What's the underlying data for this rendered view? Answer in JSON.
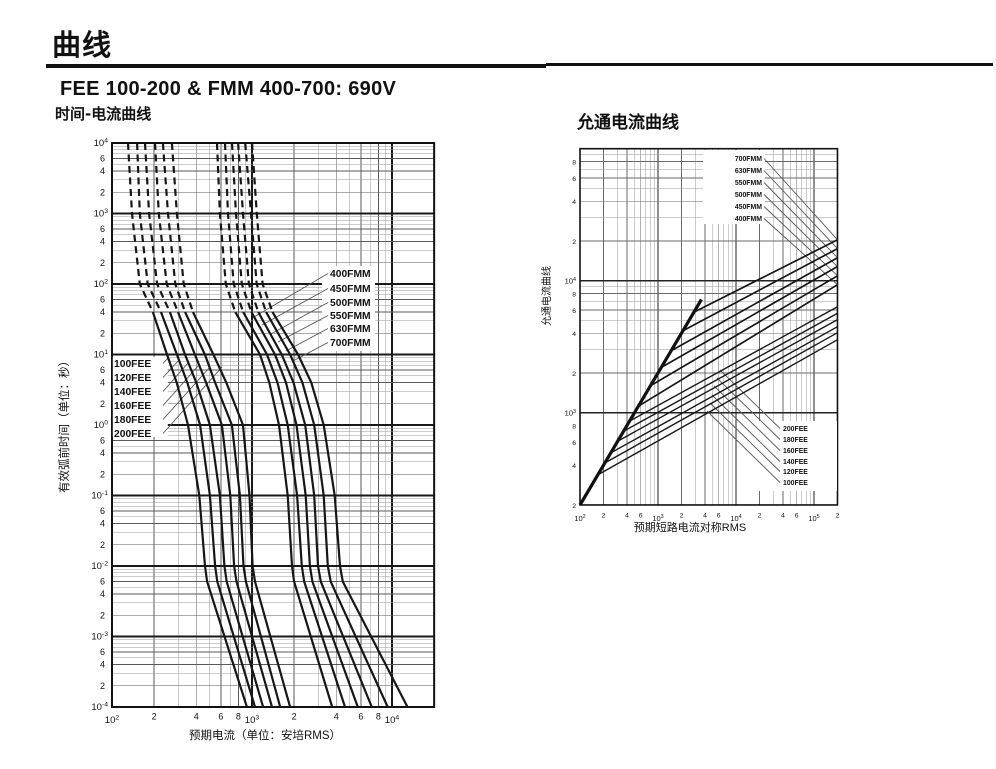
{
  "page": {
    "title": "曲线",
    "section_heading": "FEE 100-200 & FMM 400-700: 690V"
  },
  "chart_data": [
    {
      "id": "time-current",
      "type": "line",
      "title": "时间-电流曲线",
      "xlabel": "预期电流（单位：安培RMS）",
      "ylabel": "有效弧前时间（单位：秒）",
      "xscale": "log",
      "yscale": "log",
      "xlim": [
        100,
        20000
      ],
      "ylim": [
        0.0001,
        10000
      ],
      "grid": "on",
      "x_axis": {
        "decade_exps": [
          2,
          3,
          4
        ],
        "labeled_minors": [
          2,
          4,
          6,
          8
        ],
        "minor_label_decades": [
          2,
          3
        ]
      },
      "y_axis": {
        "decade_exps": [
          4,
          3,
          2,
          1,
          0,
          -1,
          -2,
          -3,
          -4
        ],
        "labeled_minors": [
          6,
          4,
          2
        ],
        "minor_label_decades": [
          3,
          2,
          1,
          0,
          -1,
          -2,
          -3,
          -4
        ]
      },
      "x_tick_labels": [
        "10^2",
        "2",
        "4",
        "6",
        "8",
        "10^3",
        "2",
        "4",
        "6",
        "8",
        "10^4"
      ],
      "y_tick_labels": [
        "10^4",
        "6",
        "4",
        "2",
        "10^3",
        "6",
        "4",
        "2",
        "10^2",
        "6",
        "4",
        "2",
        "10^1",
        "6",
        "4",
        "2",
        "10^0",
        "6",
        "4",
        "2",
        "10^-1",
        "6",
        "4",
        "2",
        "10^-2",
        "6",
        "4",
        "2",
        "10^-3",
        "6",
        "4",
        "2",
        "10^-4"
      ],
      "dash_above_seconds": 40,
      "times_s": [
        10000,
        1000,
        100,
        40,
        10,
        4,
        1,
        0.1,
        0.01,
        0.006,
        0.0001
      ],
      "series": [
        {
          "name": "100FEE",
          "points": [
            [
              130,
              10000
            ],
            [
              139,
              1000
            ],
            [
              158,
              100
            ],
            [
              196,
              40
            ],
            [
              247,
              10
            ],
            [
              290,
              4
            ],
            [
              349,
              1
            ],
            [
              420,
              0.1
            ],
            [
              462,
              0.01
            ],
            [
              478,
              0.006
            ],
            [
              920,
              0.0001
            ]
          ]
        },
        {
          "name": "120FEE",
          "points": [
            [
              151,
              10000
            ],
            [
              158,
              1000
            ],
            [
              180,
              100
            ],
            [
              224,
              40
            ],
            [
              291,
              10
            ],
            [
              345,
              4
            ],
            [
              426,
              1
            ],
            [
              500,
              0.1
            ],
            [
              545,
              0.01
            ],
            [
              565,
              0.006
            ],
            [
              1050,
              0.0001
            ]
          ]
        },
        {
          "name": "140FEE",
          "points": [
            [
              172,
              10000
            ],
            [
              184,
              1000
            ],
            [
              210,
              100
            ],
            [
              259,
              40
            ],
            [
              332,
              10
            ],
            [
              400,
              4
            ],
            [
              500,
              1
            ],
            [
              590,
              0.1
            ],
            [
              635,
              0.01
            ],
            [
              660,
              0.006
            ],
            [
              1200,
              0.0001
            ]
          ]
        },
        {
          "name": "160FEE",
          "points": [
            [
              203,
              10000
            ],
            [
              216,
              1000
            ],
            [
              246,
              100
            ],
            [
              296,
              40
            ],
            [
              391,
              10
            ],
            [
              470,
              4
            ],
            [
              610,
              1
            ],
            [
              700,
              0.1
            ],
            [
              745,
              0.01
            ],
            [
              775,
              0.006
            ],
            [
              1390,
              0.0001
            ]
          ]
        },
        {
          "name": "180FEE",
          "points": [
            [
              231,
              10000
            ],
            [
              251,
              1000
            ],
            [
              283,
              100
            ],
            [
              333,
              40
            ],
            [
              461,
              10
            ],
            [
              545,
              4
            ],
            [
              718,
              1
            ],
            [
              820,
              0.1
            ],
            [
              870,
              0.01
            ],
            [
              905,
              0.006
            ],
            [
              1590,
              0.0001
            ]
          ]
        },
        {
          "name": "200FEE",
          "points": [
            [
              268,
              10000
            ],
            [
              291,
              1000
            ],
            [
              325,
              100
            ],
            [
              379,
              40
            ],
            [
              530,
              10
            ],
            [
              655,
              4
            ],
            [
              862,
              1
            ],
            [
              960,
              0.1
            ],
            [
              1010,
              0.01
            ],
            [
              1050,
              0.006
            ],
            [
              1870,
              0.0001
            ]
          ]
        },
        {
          "name": "400FMM",
          "points": [
            [
              562,
              10000
            ],
            [
              590,
              1000
            ],
            [
              650,
              100
            ],
            [
              760,
              40
            ],
            [
              1140,
              10
            ],
            [
              1330,
              4
            ],
            [
              1560,
              1
            ],
            [
              1800,
              0.1
            ],
            [
              1930,
              0.01
            ],
            [
              2000,
              0.006
            ],
            [
              3740,
              0.0001
            ]
          ]
        },
        {
          "name": "450FMM",
          "points": [
            [
              641,
              10000
            ],
            [
              674,
              1000
            ],
            [
              740,
              100
            ],
            [
              865,
              40
            ],
            [
              1280,
              10
            ],
            [
              1520,
              4
            ],
            [
              1800,
              1
            ],
            [
              2100,
              0.1
            ],
            [
              2270,
              0.01
            ],
            [
              2360,
              0.006
            ],
            [
              4620,
              0.0001
            ]
          ]
        },
        {
          "name": "500FMM",
          "points": [
            [
              720,
              10000
            ],
            [
              769,
              1000
            ],
            [
              845,
              100
            ],
            [
              990,
              40
            ],
            [
              1460,
              10
            ],
            [
              1750,
              4
            ],
            [
              2080,
              1
            ],
            [
              2420,
              0.1
            ],
            [
              2590,
              0.01
            ],
            [
              2700,
              0.006
            ],
            [
              5700,
              0.0001
            ]
          ]
        },
        {
          "name": "550FMM",
          "points": [
            [
              795,
              10000
            ],
            [
              863,
              1000
            ],
            [
              950,
              100
            ],
            [
              1110,
              40
            ],
            [
              1630,
              10
            ],
            [
              1980,
              4
            ],
            [
              2400,
              1
            ],
            [
              2780,
              0.1
            ],
            [
              2960,
              0.01
            ],
            [
              3100,
              0.006
            ],
            [
              7170,
              0.0001
            ]
          ]
        },
        {
          "name": "630FMM",
          "points": [
            [
              894,
              10000
            ],
            [
              983,
              1000
            ],
            [
              1080,
              100
            ],
            [
              1260,
              40
            ],
            [
              1870,
              10
            ],
            [
              2290,
              4
            ],
            [
              2780,
              1
            ],
            [
              3250,
              0.1
            ],
            [
              3480,
              0.01
            ],
            [
              3650,
              0.006
            ],
            [
              9320,
              0.0001
            ]
          ]
        },
        {
          "name": "700FMM",
          "points": [
            [
              1000,
              10000
            ],
            [
              1082,
              1000
            ],
            [
              1190,
              100
            ],
            [
              1400,
              40
            ],
            [
              2130,
              10
            ],
            [
              2650,
              4
            ],
            [
              3250,
              1
            ],
            [
              3900,
              0.1
            ],
            [
              4250,
              0.01
            ],
            [
              4450,
              0.006
            ],
            [
              12900,
              0.0001
            ]
          ]
        }
      ],
      "legends": [
        {
          "group": "FMM",
          "labels": [
            "400FMM",
            "450FMM",
            "500FMM",
            "550FMM",
            "630FMM",
            "700FMM"
          ]
        },
        {
          "group": "FEE",
          "labels": [
            "100FEE",
            "120FEE",
            "140FEE",
            "160FEE",
            "180FEE",
            "200FEE"
          ]
        }
      ]
    },
    {
      "id": "let-through",
      "type": "line",
      "title": "允通电流曲线",
      "xlabel": "预期短路电流对称RMS",
      "ylabel": "允通电流曲线",
      "xscale": "log",
      "yscale": "log",
      "xlim": [
        100,
        200000
      ],
      "ylim": [
        200,
        100000
      ],
      "grid": "on",
      "x_axis": {
        "decade_exps": [
          2,
          3,
          4,
          5
        ],
        "labeled_minors": [
          2,
          4,
          6
        ],
        "minor_label_decades": [
          2,
          3,
          4,
          5
        ]
      },
      "y_axis": {
        "decade_exps": [
          4,
          3
        ],
        "labeled_minors": [
          8,
          6,
          4,
          2
        ],
        "minor_label_decades": [
          4,
          3,
          2
        ]
      },
      "x_tick_labels": [
        "10^2",
        "2",
        "4",
        "6",
        "10^3",
        "2",
        "4",
        "6",
        "10^4",
        "2",
        "4",
        "6",
        "10^5",
        "2"
      ],
      "y_tick_labels": [
        "8",
        "6",
        "4",
        "2",
        "10^4",
        "8",
        "6",
        "4",
        "2",
        "10^3",
        "8",
        "6",
        "4",
        "2"
      ],
      "prospective_line": {
        "name": "prospective-peak-line",
        "points": [
          [
            100,
            200
          ],
          [
            3600,
            7200
          ]
        ]
      },
      "series": [
        {
          "name": "700FMM",
          "points": [
            [
              2880,
              5760
            ],
            [
              200000,
              20400
            ]
          ]
        },
        {
          "name": "630FMM",
          "points": [
            [
              2090,
              4180
            ],
            [
              200000,
              17500
            ]
          ]
        },
        {
          "name": "550FMM",
          "points": [
            [
              1475,
              2950
            ],
            [
              200000,
              14900
            ]
          ]
        },
        {
          "name": "500FMM",
          "points": [
            [
              1100,
              2200
            ],
            [
              200000,
              12800
            ]
          ]
        },
        {
          "name": "450FMM",
          "points": [
            [
              800,
              1600
            ],
            [
              200000,
              10900
            ]
          ]
        },
        {
          "name": "400FMM",
          "points": [
            [
              560,
              1120
            ],
            [
              200000,
              9330
            ]
          ]
        },
        {
          "name": "200FEE",
          "points": [
            [
              432,
              864
            ],
            [
              200000,
              6350
            ]
          ]
        },
        {
          "name": "180FEE",
          "points": [
            [
              362,
              724
            ],
            [
              200000,
              5660
            ]
          ]
        },
        {
          "name": "160FEE",
          "points": [
            [
              304,
              608
            ],
            [
              200000,
              5070
            ]
          ]
        },
        {
          "name": "140FEE",
          "points": [
            [
              248,
              496
            ],
            [
              200000,
              4480
            ]
          ]
        },
        {
          "name": "120FEE",
          "points": [
            [
              208,
              416
            ],
            [
              200000,
              4040
            ]
          ]
        },
        {
          "name": "100FEE",
          "points": [
            [
              169,
              338
            ],
            [
              200000,
              3570
            ]
          ]
        }
      ],
      "legends": [
        {
          "group": "FMM",
          "labels": [
            "700FMM",
            "630FMM",
            "550FMM",
            "500FMM",
            "450FMM",
            "400FMM"
          ]
        },
        {
          "group": "FEE",
          "labels": [
            "200FEE",
            "180FEE",
            "160FEE",
            "140FEE",
            "120FEE",
            "100FEE"
          ]
        }
      ]
    }
  ]
}
